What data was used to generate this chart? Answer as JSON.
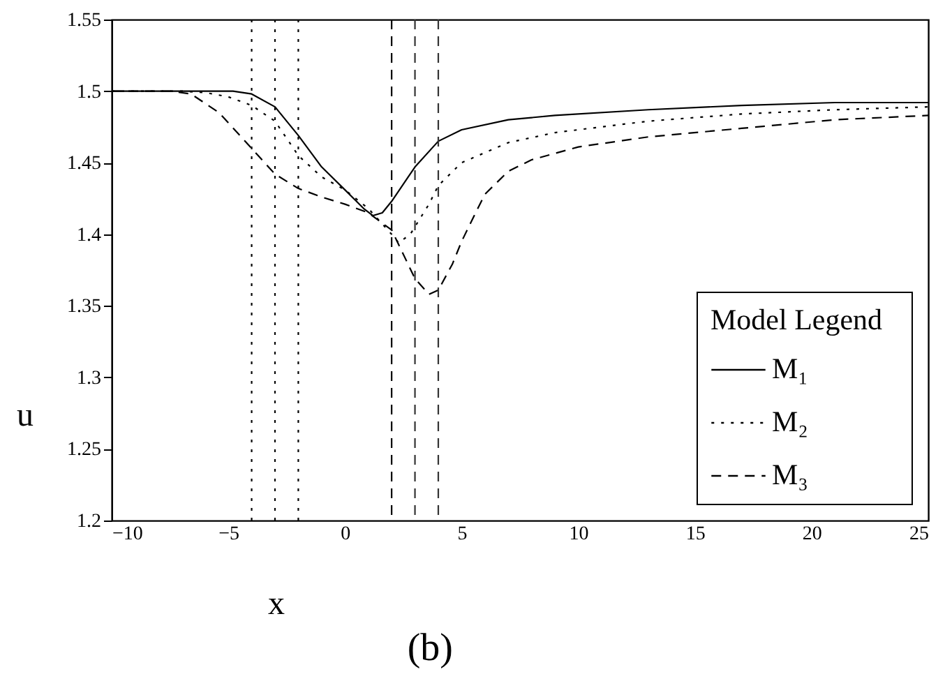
{
  "chart_data": {
    "type": "line",
    "xlabel": "x",
    "ylabel": "u",
    "legend_title": "Model   Legend",
    "xlim": [
      -10,
      25
    ],
    "ylim": [
      1.2,
      1.55
    ],
    "xticks": [
      -10,
      -5,
      0,
      5,
      10,
      15,
      20,
      25
    ],
    "yticks": [
      1.2,
      1.25,
      1.3,
      1.35,
      1.4,
      1.45,
      1.5,
      1.55
    ],
    "grid": false,
    "legend": "bottom right",
    "marker": "none",
    "series": [
      {
        "name": "M₁",
        "color": "#000000",
        "line_style": "solid",
        "x": [
          -10,
          -6,
          -4.8,
          -4,
          -3,
          -2,
          -1,
          0,
          0.8,
          1.2,
          1.6,
          2,
          3,
          4,
          5,
          7,
          9,
          13,
          17,
          21,
          25
        ],
        "values": [
          1.5,
          1.5,
          1.5,
          1.498,
          1.489,
          1.469,
          1.447,
          1.431,
          1.418,
          1.413,
          1.415,
          1.423,
          1.447,
          1.465,
          1.473,
          1.48,
          1.483,
          1.487,
          1.49,
          1.492,
          1.492
        ]
      },
      {
        "name": "M₂",
        "color": "#000000",
        "line_style": "dotted",
        "x": [
          -10,
          -7,
          -6,
          -5,
          -4,
          -3,
          -2,
          -1,
          0,
          1,
          2,
          2.3,
          2.8,
          3.6,
          4,
          5,
          7,
          9,
          13,
          17,
          21,
          25
        ],
        "values": [
          1.5,
          1.5,
          1.499,
          1.496,
          1.49,
          1.479,
          1.455,
          1.44,
          1.431,
          1.418,
          1.4,
          1.394,
          1.4,
          1.421,
          1.434,
          1.45,
          1.464,
          1.471,
          1.479,
          1.484,
          1.487,
          1.489
        ]
      },
      {
        "name": "M₃",
        "color": "#000000",
        "line_style": "dashed",
        "x": [
          -10,
          -7.5,
          -6.6,
          -5.4,
          -4,
          -3,
          -2,
          -1,
          0,
          1,
          2,
          3,
          3.6,
          4,
          4.6,
          5,
          5.6,
          6,
          7,
          8,
          10,
          13,
          17,
          21,
          25
        ],
        "values": [
          1.5,
          1.5,
          1.498,
          1.485,
          1.46,
          1.442,
          1.432,
          1.426,
          1.421,
          1.415,
          1.403,
          1.369,
          1.358,
          1.361,
          1.379,
          1.395,
          1.415,
          1.428,
          1.444,
          1.452,
          1.461,
          1.468,
          1.474,
          1.48,
          1.483
        ]
      }
    ],
    "ref_lines": [
      {
        "axis": "x",
        "value": -4,
        "line_style": "dotted"
      },
      {
        "axis": "x",
        "value": -3,
        "line_style": "dotted"
      },
      {
        "axis": "x",
        "value": -2,
        "line_style": "dotted"
      },
      {
        "axis": "x",
        "value": 2,
        "line_style": "dashed"
      },
      {
        "axis": "x",
        "value": 3,
        "line_style": "dashed",
        "color": "#333333"
      },
      {
        "axis": "x",
        "value": 4,
        "line_style": "dashed",
        "color": "#333333"
      }
    ],
    "annotations": [
      "(b)"
    ]
  }
}
